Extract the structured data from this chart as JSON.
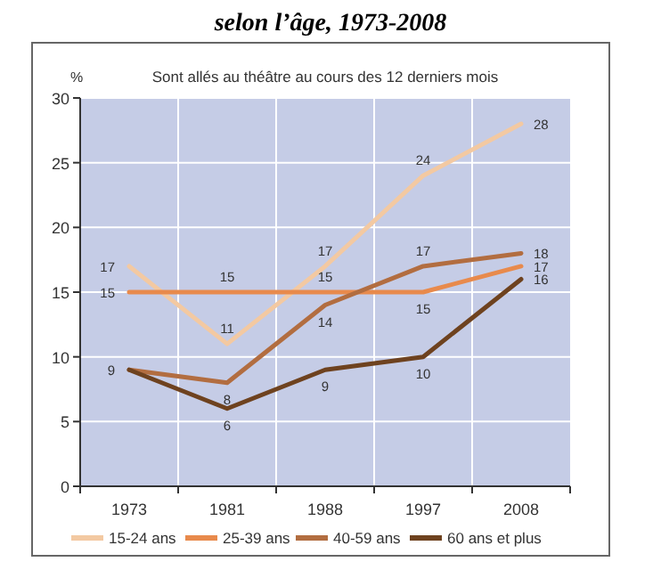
{
  "chart_data": {
    "type": "line",
    "title": "selon l’âge, 1973-2008",
    "subtitle": "Sont allés au théâtre au cours des 12 derniers mois",
    "ylabel": "%",
    "categories": [
      "1973",
      "1981",
      "1988",
      "1997",
      "2008"
    ],
    "series": [
      {
        "name": "15-24 ans",
        "color": "#f3c9a2",
        "values": [
          17,
          11,
          17,
          24,
          28
        ],
        "value_labels": [
          "17",
          "11",
          "17",
          "24",
          "28"
        ]
      },
      {
        "name": "25-39 ans",
        "color": "#e88a4c",
        "values": [
          15,
          15,
          15,
          15,
          17
        ],
        "value_labels": [
          "15",
          "15",
          "15",
          "15",
          "17"
        ]
      },
      {
        "name": "40-59 ans",
        "color": "#b26d40",
        "values": [
          9,
          8,
          14,
          17,
          18
        ],
        "value_labels": [
          "9",
          "8",
          "14",
          "17",
          "18"
        ]
      },
      {
        "name": "60 ans et plus",
        "color": "#6e421f",
        "values": [
          9,
          6,
          9,
          10,
          16
        ],
        "value_labels": [
          null,
          "6",
          "9",
          "10",
          "16"
        ]
      }
    ],
    "ylim": [
      0,
      30
    ],
    "yticks": [
      0,
      5,
      10,
      15,
      20,
      25,
      30
    ],
    "grid": true,
    "legend": "bottom",
    "marker": "none",
    "line_style": "solid"
  }
}
